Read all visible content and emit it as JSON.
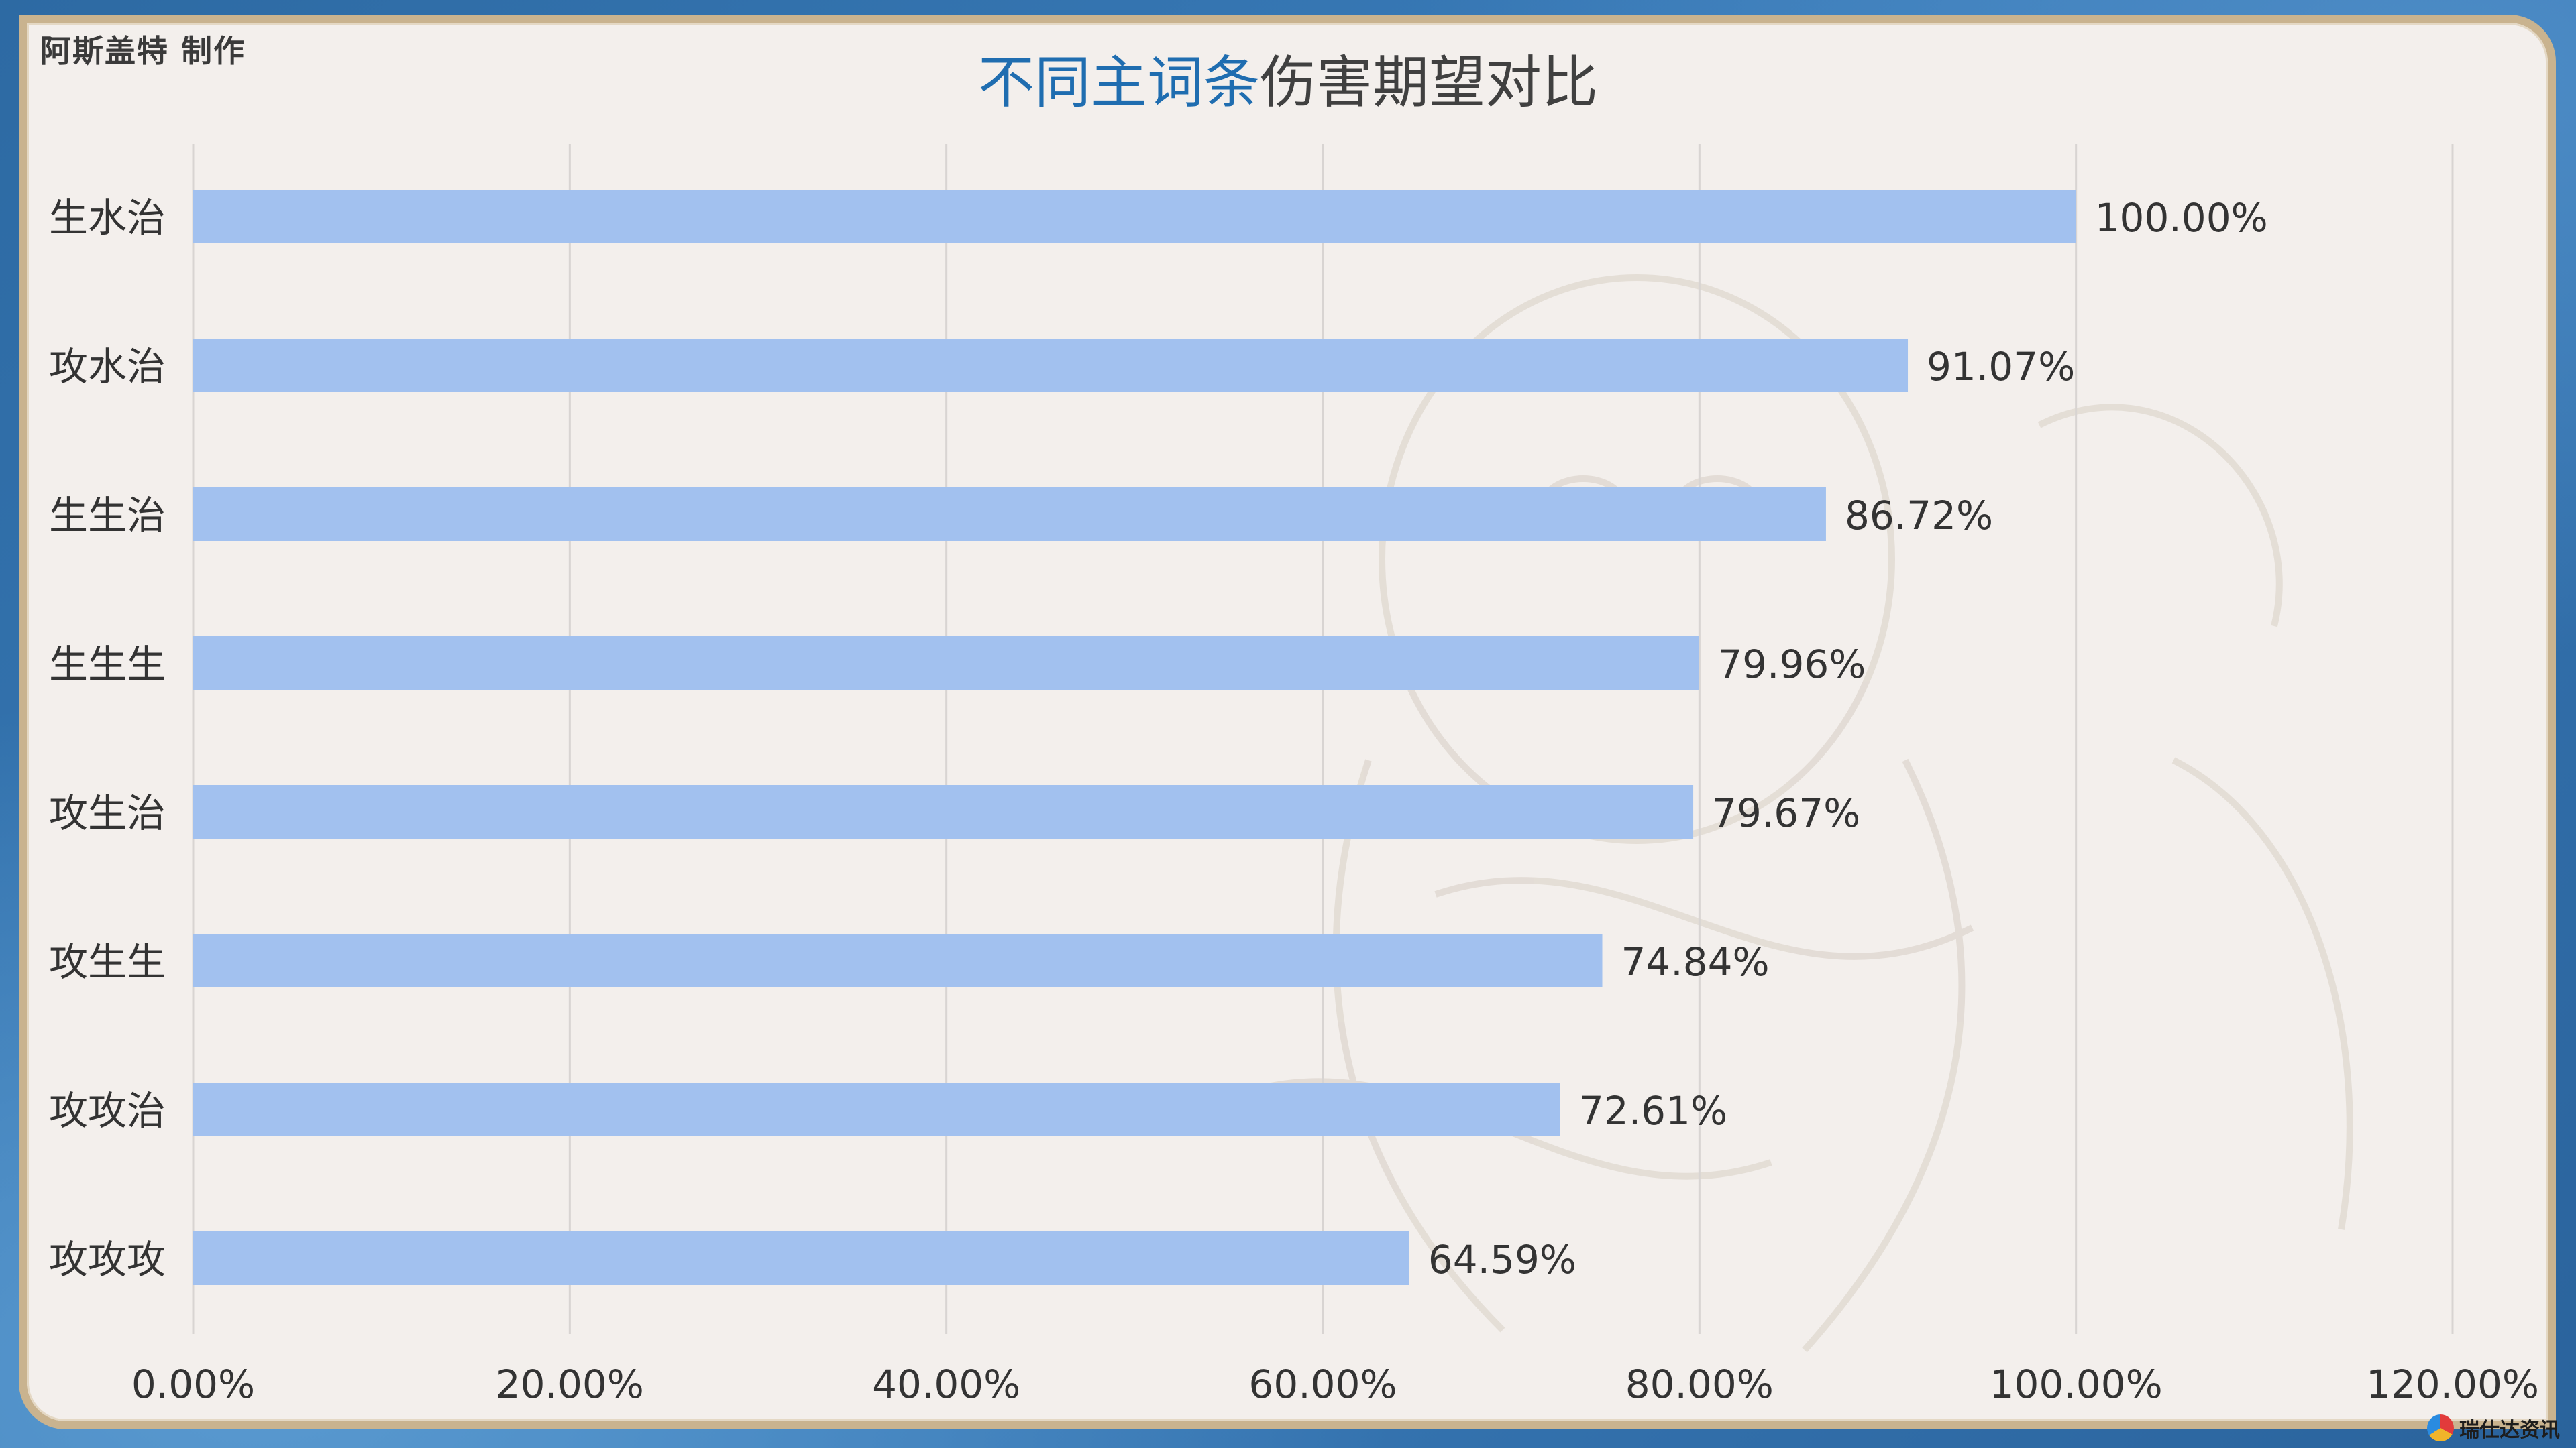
{
  "credit": "阿斯盖特 制作",
  "title": {
    "highlight": "不同主词条",
    "rest": "伤害期望对比"
  },
  "logo_text": "瑞仕达资讯",
  "colors": {
    "bar": "#a2c1ef",
    "grid": "#d8d4d2",
    "text": "#333333",
    "title_accent": "#1f6db0",
    "frame": "#c9b38f"
  },
  "chart_data": {
    "type": "bar",
    "orientation": "horizontal",
    "title": "不同主词条伤害期望对比",
    "categories": [
      "生水治",
      "攻水治",
      "生生治",
      "生生生",
      "攻生治",
      "攻生生",
      "攻攻治",
      "攻攻攻"
    ],
    "values": [
      100.0,
      91.07,
      86.72,
      79.96,
      79.67,
      74.84,
      72.61,
      64.59
    ],
    "value_labels": [
      "100.00%",
      "91.07%",
      "86.72%",
      "79.96%",
      "79.67%",
      "74.84%",
      "72.61%",
      "64.59%"
    ],
    "xlim": [
      0,
      120
    ],
    "x_ticks": [
      0,
      20,
      40,
      60,
      80,
      100,
      120
    ],
    "x_tick_labels": [
      "0.00%",
      "20.00%",
      "40.00%",
      "60.00%",
      "80.00%",
      "100.00%",
      "120.00%"
    ],
    "xlabel": "",
    "ylabel": "",
    "grid": "vertical",
    "legend": "none"
  }
}
